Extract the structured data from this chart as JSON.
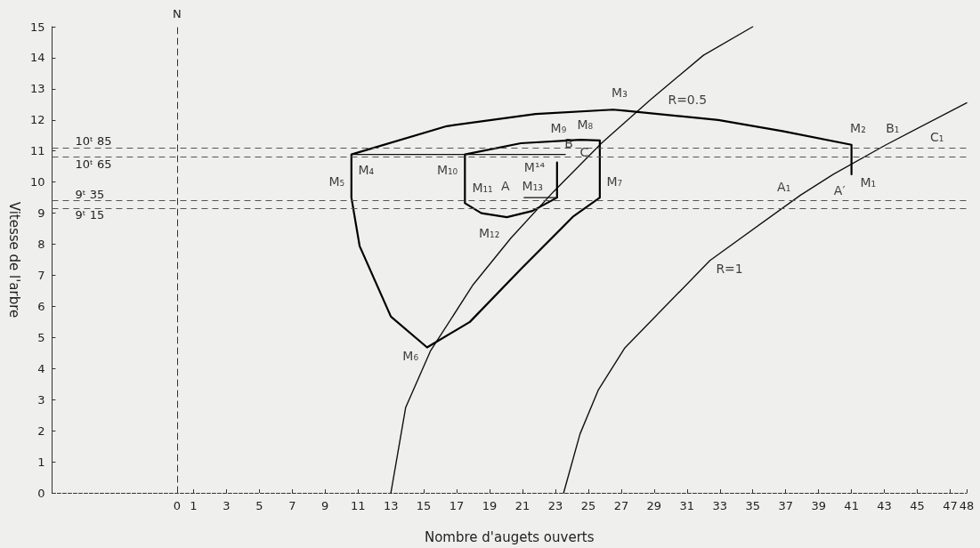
{
  "chart_data": {
    "type": "line",
    "xlabel": "Nombre d'augets ouverts",
    "ylabel": "Vitesse de l'arbre",
    "xlim": [
      -7.6,
      48
    ],
    "xticks": [
      0,
      1,
      3,
      5,
      7,
      9,
      11,
      13,
      15,
      17,
      19,
      21,
      23,
      25,
      27,
      29,
      31,
      33,
      35,
      37,
      39,
      41,
      43,
      45,
      47,
      48
    ],
    "ylim": [
      0,
      15
    ],
    "yticks": [
      0,
      1,
      2,
      3,
      4,
      5,
      6,
      7,
      8,
      9,
      10,
      11,
      12,
      13,
      14,
      15
    ],
    "grid": false,
    "marker": "none",
    "line_style": "solid",
    "series": [
      {
        "color": "#111111",
        "x": [
          13,
          13.9,
          15.4,
          18,
          20.3,
          22.9,
          25.8,
          28.8,
          32,
          35
        ],
        "values": [
          0,
          2.75,
          4.56,
          6.7,
          8.2,
          9.7,
          11.25,
          12.66,
          14.08,
          15
        ]
      },
      {
        "color": "#111111",
        "x": [
          23.5,
          24.5,
          25.6,
          27.2,
          32.4,
          37.9,
          39.9,
          43.1,
          48
        ],
        "values": [
          0,
          1.9,
          3.3,
          4.65,
          7.48,
          9.58,
          10.25,
          11.2,
          12.55
        ]
      },
      {
        "color": "#000000",
        "x": [
          41,
          41,
          36.8,
          32.9,
          27.2,
          26.5,
          21.8,
          16.4,
          10.6,
          10.6,
          11.1,
          13,
          15.2,
          17.8,
          20.9,
          24.1,
          25.7,
          25.7,
          24.5,
          20.9,
          17.5,
          17.5,
          18.5,
          20.05,
          21.6,
          23.1,
          23.1
        ],
        "values": [
          10.25,
          11.2,
          11.64,
          12,
          12.3,
          12.33,
          12.19,
          11.8,
          10.89,
          9.5,
          7.94,
          5.67,
          4.68,
          5.5,
          7.2,
          8.9,
          9.5,
          11.34,
          11.36,
          11.25,
          10.89,
          9.32,
          9,
          8.87,
          9.07,
          9.5,
          10.63
        ]
      },
      {
        "color": "#111111",
        "x": [
          10.6,
          23.6
        ],
        "values": [
          10.89,
          10.89
        ]
      },
      {
        "color": "#111111",
        "x": [
          21.1,
          23.1
        ],
        "values": [
          9.5,
          9.5
        ]
      }
    ],
    "ref_lines": [
      {
        "axis": "x",
        "value": 0,
        "label": "N",
        "line_style": "dashed",
        "color": "#333333"
      },
      {
        "axis": "y",
        "value": 11.1,
        "label": "10ᵗ 85",
        "line_style": "dashed",
        "color": "#555555"
      },
      {
        "axis": "y",
        "value": 10.8,
        "label": "10ᵗ 65",
        "line_style": "dashed",
        "color": "#555555"
      },
      {
        "axis": "y",
        "value": 9.4,
        "label": "9ᵗ 35",
        "line_style": "dashed",
        "color": "#555555"
      },
      {
        "axis": "y",
        "value": 9.15,
        "label": "9ᵗ 15",
        "line_style": "dashed",
        "color": "#555555"
      }
    ],
    "annotations": [
      {
        "text": "M₁",
        "x": 41,
        "y": 10.25
      },
      {
        "text": "M₂",
        "x": 41,
        "y": 11.2
      },
      {
        "text": "M₃",
        "x": 26.5,
        "y": 12.33
      },
      {
        "text": "M₄",
        "x": 10.6,
        "y": 10.89
      },
      {
        "text": "M₅",
        "x": 10.6,
        "y": 9.5
      },
      {
        "text": "M₆",
        "x": 15.2,
        "y": 4.68
      },
      {
        "text": "M₇",
        "x": 25.7,
        "y": 9.5
      },
      {
        "text": "M₈",
        "x": 25.7,
        "y": 11.34
      },
      {
        "text": "M₉",
        "x": 24.5,
        "y": 11.36
      },
      {
        "text": "M₁₀",
        "x": 17.5,
        "y": 10.89
      },
      {
        "text": "M₁₁",
        "x": 17.5,
        "y": 9.32
      },
      {
        "text": "M₁₂",
        "x": 20.05,
        "y": 8.87
      },
      {
        "text": "M₁₃",
        "x": 23.1,
        "y": 9.5
      },
      {
        "text": "M¹⁴",
        "x": 23.1,
        "y": 10.63
      },
      {
        "text": "A",
        "x": 21.1,
        "y": 9.5
      },
      {
        "text": "B",
        "x": 23.6,
        "y": 10.89
      },
      {
        "text": "C",
        "x": 24.2,
        "y": 11.3
      },
      {
        "text": "A₁",
        "x": 37.9,
        "y": 9.58
      },
      {
        "text": "B₁",
        "x": 43.1,
        "y": 11.2
      },
      {
        "text": "C₁",
        "x": 44.5,
        "y": 11.45
      },
      {
        "text": "A′",
        "x": 41,
        "y": 9.4
      },
      {
        "text": "R=0.5",
        "x": 28.8,
        "y": 12.66
      },
      {
        "text": "R=1",
        "x": 32.4,
        "y": 7.48
      }
    ]
  }
}
